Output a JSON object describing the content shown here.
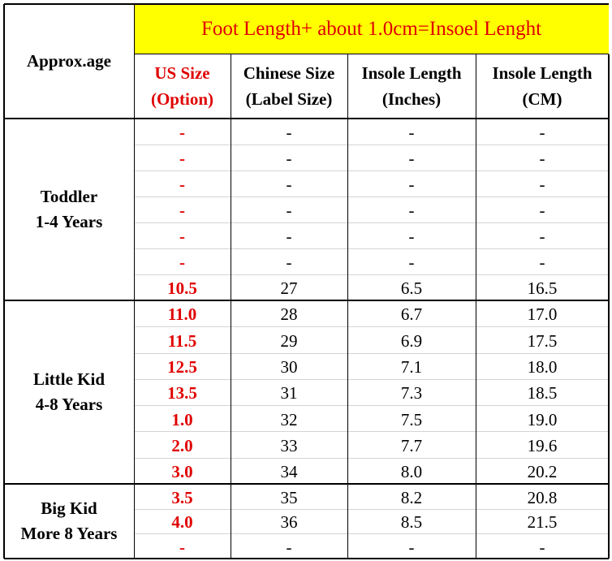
{
  "header": {
    "approx_age": "Approx.age",
    "banner": "Foot Length+ about 1.0cm=Insoel Lenght",
    "columns": [
      [
        "US Size",
        "(Option)"
      ],
      [
        "Chinese Size",
        "(Label Size)"
      ],
      [
        "Insole Length",
        "(Inches)"
      ],
      [
        "Insole Length",
        "(CM)"
      ]
    ]
  },
  "groups": [
    {
      "label": [
        "Toddler",
        "1-4 Years"
      ],
      "rows": [
        [
          "-",
          "-",
          "-",
          "-"
        ],
        [
          "-",
          "-",
          "-",
          "-"
        ],
        [
          "-",
          "-",
          "-",
          "-"
        ],
        [
          "-",
          "-",
          "-",
          "-"
        ],
        [
          "-",
          "-",
          "-",
          "-"
        ],
        [
          "-",
          "-",
          "-",
          "-"
        ],
        [
          "10.5",
          "27",
          "6.5",
          "16.5"
        ]
      ]
    },
    {
      "label": [
        "Little Kid",
        "4-8 Years"
      ],
      "rows": [
        [
          "11.0",
          "28",
          "6.7",
          "17.0"
        ],
        [
          "11.5",
          "29",
          "6.9",
          "17.5"
        ],
        [
          "12.5",
          "30",
          "7.1",
          "18.0"
        ],
        [
          "13.5",
          "31",
          "7.3",
          "18.5"
        ],
        [
          "1.0",
          "32",
          "7.5",
          "19.0"
        ],
        [
          "2.0",
          "33",
          "7.7",
          "19.6"
        ],
        [
          "3.0",
          "34",
          "8.0",
          "20.2"
        ]
      ]
    },
    {
      "label": [
        "Big Kid",
        "More 8 Years"
      ],
      "rows": [
        [
          "3.5",
          "35",
          "8.2",
          "20.8"
        ],
        [
          "4.0",
          "36",
          "8.5",
          "21.5"
        ],
        [
          "-",
          "-",
          "-",
          "-"
        ]
      ]
    }
  ]
}
